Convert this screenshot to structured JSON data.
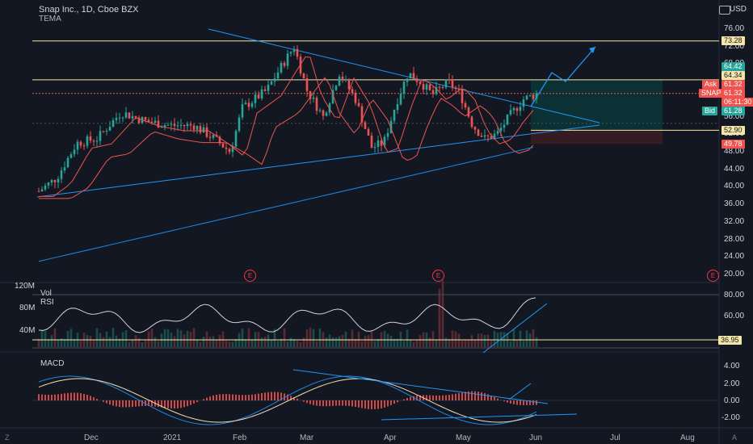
{
  "header": {
    "symbol_line": "Snap Inc., 1D, Cboe BZX",
    "indicator": "TEMA",
    "currency": "USD"
  },
  "price_axis": {
    "ticks": [
      "76.00",
      "72.00",
      "68.00",
      "64.00",
      "60.00",
      "56.00",
      "52.00",
      "48.00",
      "44.00",
      "40.00",
      "36.00",
      "32.00",
      "28.00",
      "24.00",
      "20.00"
    ]
  },
  "price_tags": {
    "resistance_high": "73.28",
    "last_high": "64.42",
    "current": "64.34",
    "ask_label": "Ask",
    "ask_value": "61.32",
    "symbol_label": "SNAP",
    "symbol_value": "61.32",
    "countdown": "06:11:30",
    "bid_label": "Bid",
    "bid_value": "61.28",
    "support_line": "52.90",
    "stop_level": "49.78"
  },
  "volume_pane": {
    "label": "Vol",
    "ticks": [
      "120M",
      "80M",
      "40M"
    ]
  },
  "rsi_pane": {
    "label": "RSI",
    "ticks": [
      "80.00",
      "60.00",
      "40.00"
    ],
    "level_tag": "36.95"
  },
  "macd_pane": {
    "label": "MACD",
    "ticks": [
      "4.00",
      "2.00",
      "0.00",
      "-2.00"
    ]
  },
  "time_axis": {
    "labels": [
      "Dec",
      "2021",
      "Feb",
      "Mar",
      "Apr",
      "May",
      "Jun",
      "Jul",
      "Aug"
    ]
  },
  "earnings_markers": [
    "E",
    "E",
    "E"
  ],
  "corner_labels": {
    "left": "Z",
    "right": "A"
  },
  "colors": {
    "background": "#131722",
    "up": "#26a69a",
    "down": "#ef5350",
    "trendline": "#2196f3",
    "horizontal_line": "#f5e6a8",
    "tema_red": "#ef5350",
    "tema_blue": "#1e88e5",
    "profit_zone": "#0b3b3b",
    "loss_zone": "#3a1c22"
  }
}
